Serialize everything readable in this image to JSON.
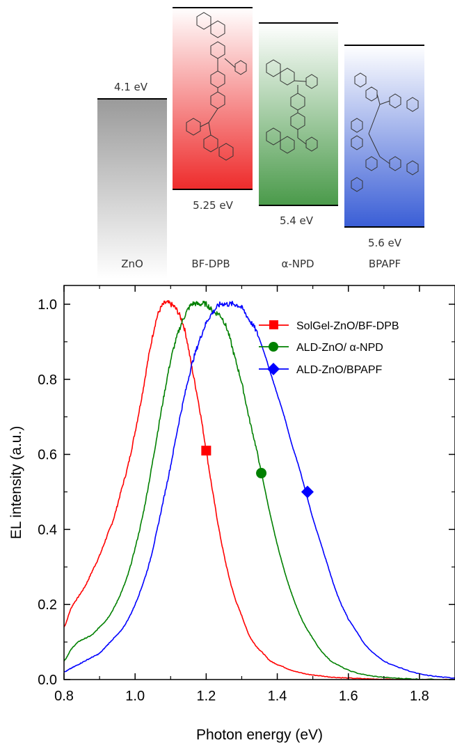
{
  "energy_diagram": {
    "columns": [
      {
        "label": "ZnO",
        "top_value": "4.1 eV",
        "bottom_value": "",
        "color": "#9a9a9a"
      },
      {
        "label": "BF-DPB",
        "top_value": "",
        "bottom_value": "5.25 eV",
        "color": "#ee2b2b"
      },
      {
        "label": "α-NPD",
        "top_value": "",
        "bottom_value": "5.4 eV",
        "color": "#4a9a4a"
      },
      {
        "label": "BPAPF",
        "top_value": "",
        "bottom_value": "5.6 eV",
        "color": "#3a5ed6"
      }
    ]
  },
  "chart_data": {
    "type": "line",
    "xlabel": "Photon energy (eV)",
    "ylabel": "EL intensity (a.u.)",
    "xlim": [
      0.8,
      1.9
    ],
    "ylim": [
      0.0,
      1.05
    ],
    "x_ticks": [
      "0.8",
      "1.0",
      "1.2",
      "1.4",
      "1.6",
      "1.8"
    ],
    "y_ticks": [
      "0.0",
      "0.2",
      "0.4",
      "0.6",
      "0.8",
      "1.0"
    ],
    "legend_position": "top-right",
    "grid": false,
    "series": [
      {
        "name": "SolGel-ZnO/BF-DPB",
        "color": "#ff0000",
        "marker": "square",
        "marker_point": [
          1.2,
          0.61
        ],
        "x": [
          0.8,
          0.82,
          0.84,
          0.86,
          0.88,
          0.9,
          0.92,
          0.94,
          0.96,
          0.98,
          1.0,
          1.02,
          1.04,
          1.06,
          1.08,
          1.1,
          1.12,
          1.14,
          1.16,
          1.18,
          1.2,
          1.22,
          1.24,
          1.26,
          1.28,
          1.3,
          1.32,
          1.34,
          1.36,
          1.38,
          1.4,
          1.44,
          1.48,
          1.52,
          1.56,
          1.6,
          1.65,
          1.7,
          1.8,
          1.9
        ],
        "values": [
          0.14,
          0.19,
          0.22,
          0.25,
          0.29,
          0.33,
          0.38,
          0.43,
          0.5,
          0.57,
          0.66,
          0.76,
          0.87,
          0.96,
          1.0,
          1.0,
          0.98,
          0.93,
          0.83,
          0.73,
          0.61,
          0.49,
          0.38,
          0.29,
          0.22,
          0.17,
          0.12,
          0.09,
          0.07,
          0.05,
          0.04,
          0.025,
          0.015,
          0.01,
          0.006,
          0.004,
          0.002,
          0.001,
          0.0,
          0.0
        ]
      },
      {
        "name": "ALD-ZnO/ α-NPD",
        "color": "#008000",
        "marker": "circle",
        "marker_point": [
          1.355,
          0.55
        ],
        "x": [
          0.8,
          0.82,
          0.84,
          0.86,
          0.88,
          0.9,
          0.92,
          0.94,
          0.96,
          0.98,
          1.0,
          1.02,
          1.04,
          1.06,
          1.08,
          1.1,
          1.12,
          1.14,
          1.16,
          1.18,
          1.2,
          1.22,
          1.24,
          1.26,
          1.28,
          1.3,
          1.32,
          1.34,
          1.36,
          1.38,
          1.4,
          1.42,
          1.44,
          1.46,
          1.48,
          1.5,
          1.52,
          1.55,
          1.6,
          1.65,
          1.7,
          1.75,
          1.8,
          1.9
        ],
        "values": [
          0.05,
          0.08,
          0.1,
          0.11,
          0.12,
          0.14,
          0.16,
          0.19,
          0.23,
          0.28,
          0.35,
          0.43,
          0.53,
          0.64,
          0.75,
          0.85,
          0.92,
          0.97,
          1.0,
          1.0,
          1.0,
          0.98,
          0.97,
          0.93,
          0.86,
          0.79,
          0.7,
          0.62,
          0.53,
          0.44,
          0.36,
          0.29,
          0.23,
          0.18,
          0.14,
          0.11,
          0.08,
          0.05,
          0.025,
          0.012,
          0.006,
          0.003,
          0.001,
          0.0
        ]
      },
      {
        "name": "ALD-ZnO/BPAPF",
        "color": "#0000ff",
        "marker": "diamond",
        "marker_point": [
          1.485,
          0.5
        ],
        "x": [
          0.8,
          0.82,
          0.84,
          0.86,
          0.88,
          0.9,
          0.92,
          0.94,
          0.96,
          0.98,
          1.0,
          1.02,
          1.04,
          1.06,
          1.08,
          1.1,
          1.12,
          1.14,
          1.16,
          1.18,
          1.2,
          1.22,
          1.24,
          1.26,
          1.28,
          1.3,
          1.32,
          1.34,
          1.36,
          1.38,
          1.4,
          1.42,
          1.44,
          1.46,
          1.48,
          1.5,
          1.52,
          1.54,
          1.56,
          1.58,
          1.6,
          1.65,
          1.7,
          1.75,
          1.8,
          1.85,
          1.9
        ],
        "values": [
          0.02,
          0.03,
          0.04,
          0.05,
          0.06,
          0.07,
          0.09,
          0.11,
          0.13,
          0.16,
          0.2,
          0.25,
          0.31,
          0.39,
          0.48,
          0.57,
          0.67,
          0.76,
          0.84,
          0.9,
          0.95,
          0.98,
          1.0,
          1.0,
          1.0,
          0.99,
          0.96,
          0.93,
          0.88,
          0.82,
          0.76,
          0.7,
          0.63,
          0.57,
          0.5,
          0.43,
          0.37,
          0.31,
          0.25,
          0.2,
          0.16,
          0.09,
          0.05,
          0.03,
          0.015,
          0.008,
          0.004
        ]
      }
    ]
  }
}
